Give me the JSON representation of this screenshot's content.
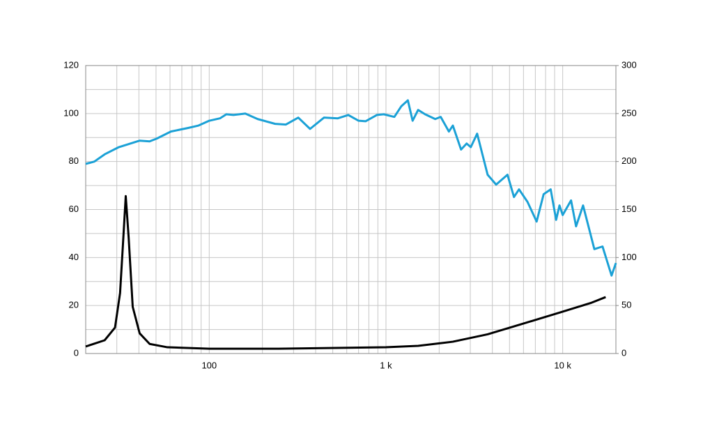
{
  "chart_data": {
    "type": "line",
    "xscale": "log",
    "grid": true,
    "xlim": [
      20,
      20000
    ],
    "xticks": [
      100,
      {
        "value": 1000,
        "label": "1 k"
      },
      {
        "value": 10000,
        "label": "10 k"
      }
    ],
    "xgrid": [
      20,
      30,
      40,
      50,
      60,
      70,
      80,
      90,
      200,
      300,
      400,
      500,
      600,
      700,
      800,
      900,
      2000,
      3000,
      4000,
      5000,
      6000,
      7000,
      8000,
      9000,
      20000
    ],
    "ylim": [
      0,
      120
    ],
    "yticks": [
      0,
      20,
      40,
      60,
      80,
      100,
      120
    ],
    "ygrid": [
      10,
      30,
      50,
      70,
      90,
      110
    ],
    "y2lim": [
      0,
      300
    ],
    "y2ticks": [
      0,
      50,
      100,
      150,
      200,
      250,
      300
    ],
    "series": [
      {
        "color": "#1ba1d6",
        "x": [
          20,
          22.4,
          25.6,
          30.8,
          40.4,
          46,
          50.6,
          60.7,
          76,
          87,
          100,
          115,
          125,
          137,
          160,
          188,
          236,
          271,
          319,
          372,
          446,
          534,
          612,
          700,
          768,
          888,
          972,
          1115,
          1220,
          1330,
          1415,
          1520,
          1665,
          1900,
          2040,
          2270,
          2390,
          2660,
          2860,
          3020,
          3280,
          3760,
          4200,
          4870,
          5300,
          5660,
          6320,
          7120,
          7800,
          8550,
          9180,
          9590,
          10000,
          11150,
          11900,
          13040,
          15100,
          16800,
          18900,
          20000
        ],
        "values": [
          79,
          80,
          83,
          86,
          88.7,
          88.4,
          89.6,
          92.5,
          94,
          95,
          97,
          98,
          99.7,
          99.4,
          100,
          97.7,
          95.7,
          95.4,
          98.3,
          93.6,
          98.3,
          98,
          99.4,
          97,
          96.8,
          99.4,
          99.7,
          98.6,
          103,
          105.5,
          97,
          101.5,
          99.7,
          97.7,
          98.6,
          92.5,
          95,
          85,
          87.5,
          86,
          91.6,
          74.5,
          70.4,
          74.5,
          65.2,
          68.4,
          63.2,
          55,
          66.4,
          68.4,
          55.7,
          61.7,
          57.7,
          63.8,
          53,
          61.7,
          43.5,
          44.6,
          32.5,
          37.7
        ]
      },
      {
        "color": "#000000",
        "axis": "y2",
        "x": [
          20,
          25.6,
          29.3,
          31.3,
          32.5,
          33.7,
          35,
          36.9,
          40.4,
          46,
          58,
          100,
          247,
          612,
          1000,
          1520,
          2390,
          3760,
          5940,
          10000,
          14600,
          17500
        ],
        "values": [
          7.3,
          13.8,
          27,
          63,
          114,
          164,
          121,
          48.7,
          21,
          10,
          6.5,
          5,
          5,
          6,
          6.5,
          8,
          12.3,
          20,
          31,
          43.6,
          53,
          58.8
        ]
      }
    ]
  }
}
